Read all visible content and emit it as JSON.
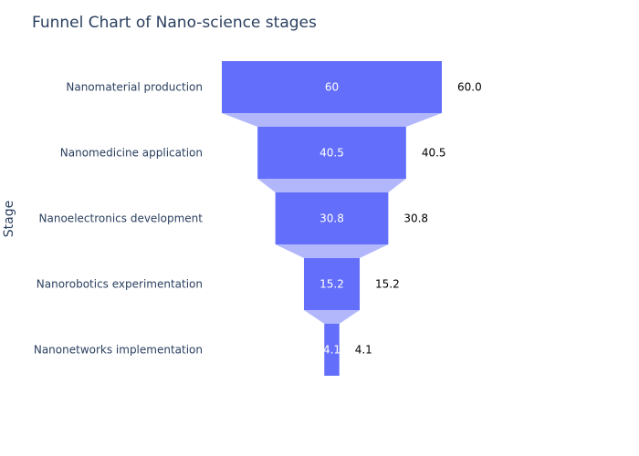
{
  "chart_data": {
    "type": "funnel",
    "title": "Funnel Chart of Nano-science stages",
    "ylabel": "Stage",
    "xlabel": "",
    "categories": [
      "Nanomaterial production",
      "Nanomedicine application",
      "Nanoelectronics development",
      "Nanorobotics experimentation",
      "Nanonetworks implementation"
    ],
    "values": [
      60,
      40.5,
      30.8,
      15.2,
      4.1
    ],
    "inner_labels": [
      "60",
      "40.5",
      "30.8",
      "15.2",
      "4.1"
    ],
    "outer_labels": [
      "60.0",
      "40.5",
      "30.8",
      "15.2",
      "4.1"
    ],
    "colors": {
      "bar": "#636efa",
      "connector": "#b2b7fc",
      "text": "#2a3f5f"
    },
    "grid": false,
    "legend": "none"
  }
}
